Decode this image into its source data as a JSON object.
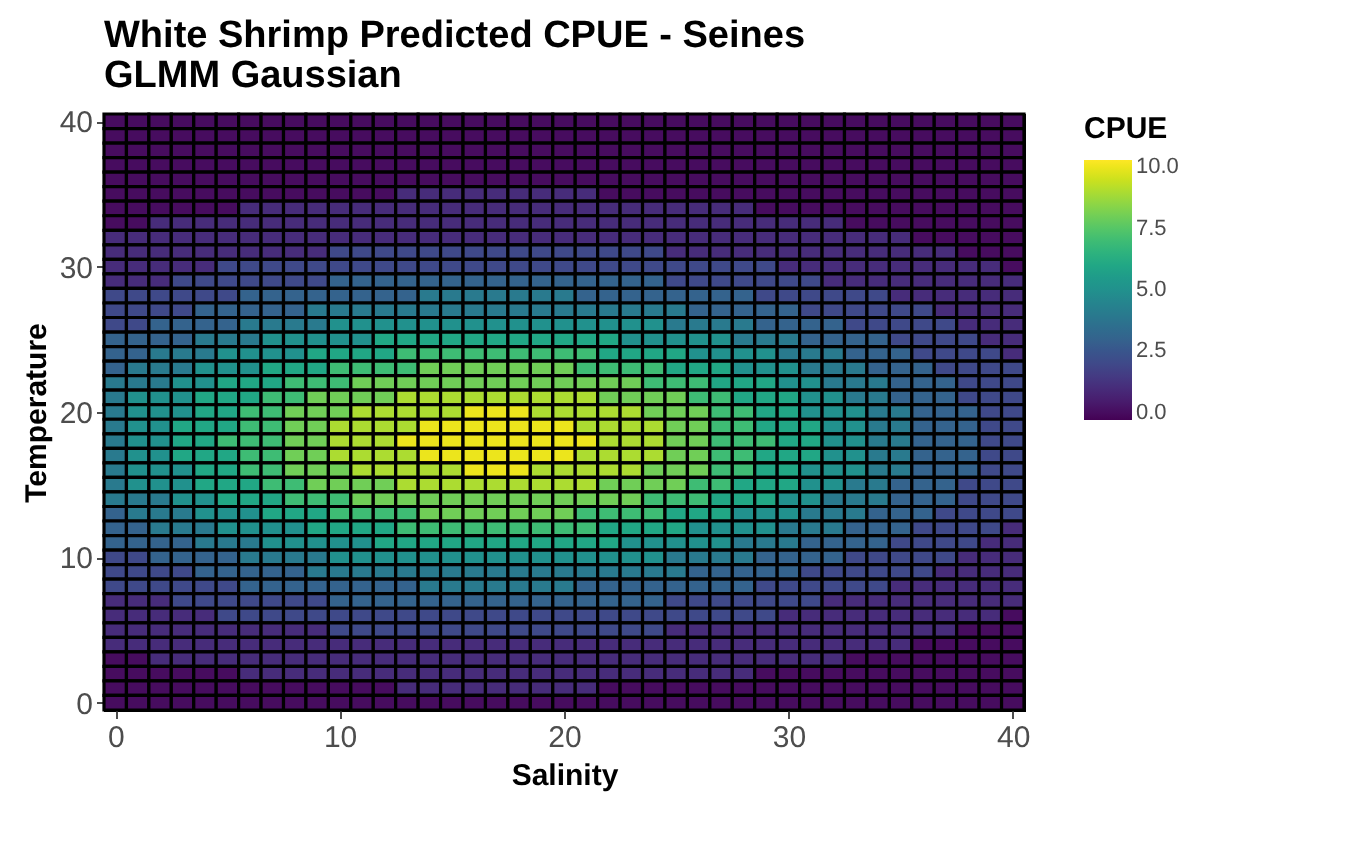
{
  "chart_data": {
    "type": "heatmap",
    "title": "White Shrimp Predicted CPUE - Seines\n GLMM Gaussian",
    "xlabel": "Salinity",
    "ylabel": "Temperature",
    "clabel": "CPUE",
    "x": [
      0,
      1,
      2,
      3,
      4,
      5,
      6,
      7,
      8,
      9,
      10,
      11,
      12,
      13,
      14,
      15,
      16,
      17,
      18,
      19,
      20,
      21,
      22,
      23,
      24,
      25,
      26,
      27,
      28,
      29,
      30,
      31,
      32,
      33,
      34,
      35,
      36,
      37,
      38,
      39,
      40
    ],
    "y": [
      40,
      39,
      38,
      37,
      36,
      35,
      34,
      33,
      32,
      31,
      30,
      29,
      28,
      27,
      26,
      25,
      24,
      23,
      22,
      21,
      20,
      19,
      18,
      17,
      16,
      15,
      14,
      13,
      12,
      11,
      10,
      9,
      8,
      7,
      6,
      5,
      4,
      3,
      2,
      1,
      0
    ],
    "xlim": [
      -0.5,
      40.5
    ],
    "xticks": [
      0,
      10,
      20,
      30,
      40
    ],
    "ylim": [
      -0.5,
      40.5
    ],
    "yticks": [
      0,
      10,
      20,
      30,
      40
    ],
    "clim": [
      -0.3,
      10.3
    ],
    "cticks": [
      {
        "value": 0,
        "label": "0.0"
      },
      {
        "value": 2.5,
        "label": "2.5"
      },
      {
        "value": 5,
        "label": "5.0"
      },
      {
        "value": 7.5,
        "label": "7.5"
      },
      {
        "value": 10,
        "label": "10.0"
      }
    ],
    "cells": [
      [
        0,
        0,
        0,
        0,
        0,
        0,
        0,
        0,
        0,
        0,
        0,
        0,
        0,
        0,
        0,
        0,
        0,
        0,
        0,
        0,
        0,
        0,
        0,
        0,
        0,
        0,
        0,
        0,
        0,
        0,
        0,
        0,
        0,
        0,
        0,
        0,
        0,
        0,
        0,
        0,
        0
      ],
      [
        0,
        0,
        0,
        0,
        0,
        0,
        0,
        0,
        0,
        0,
        0,
        0,
        0,
        0,
        0,
        0,
        0,
        0,
        0,
        0,
        0,
        0,
        0,
        0,
        0,
        0,
        0,
        0,
        0,
        0,
        0,
        0,
        0,
        0,
        0,
        0,
        0,
        0,
        0,
        0,
        0
      ],
      [
        0,
        0,
        0,
        0,
        0,
        0,
        0,
        0,
        0,
        0,
        0,
        0,
        0,
        0,
        0,
        0,
        0,
        0,
        0,
        0,
        0,
        0,
        0,
        0,
        0,
        0,
        0,
        0,
        0,
        0,
        0,
        0,
        0,
        0,
        0,
        0,
        0,
        0,
        0,
        0,
        0
      ],
      [
        0,
        0,
        0,
        0,
        0,
        0,
        0,
        0,
        0,
        0,
        0,
        0,
        0,
        0,
        0,
        0,
        0,
        0,
        0,
        0,
        0,
        0,
        0,
        0,
        0,
        0,
        0,
        0,
        0,
        0,
        0,
        0,
        0,
        0,
        0,
        0,
        0,
        0,
        0,
        0,
        0
      ],
      [
        0,
        0,
        0,
        0,
        0,
        0,
        0,
        0,
        0,
        0,
        0,
        0,
        0,
        0,
        0,
        0,
        0,
        0,
        0,
        0,
        0,
        0,
        0,
        0,
        0,
        0,
        0,
        0,
        0,
        0,
        0,
        0,
        0,
        0,
        0,
        0,
        0,
        0,
        0,
        0,
        0
      ],
      [
        0,
        0,
        0,
        0,
        0,
        0,
        0,
        0,
        0,
        0,
        0,
        0,
        0,
        1,
        1,
        1,
        1,
        1,
        1,
        1,
        1,
        1,
        0,
        0,
        0,
        0,
        0,
        0,
        0,
        0,
        0,
        0,
        0,
        0,
        0,
        0,
        0,
        0,
        0,
        0,
        0
      ],
      [
        0,
        0,
        0,
        0,
        0,
        0,
        1,
        1,
        1,
        1,
        1,
        1,
        1,
        1,
        1,
        1,
        1,
        1,
        1,
        1,
        1,
        1,
        1,
        1,
        1,
        1,
        1,
        1,
        1,
        0,
        0,
        0,
        0,
        0,
        0,
        0,
        0,
        0,
        0,
        0,
        0
      ],
      [
        0,
        0,
        1,
        1,
        1,
        1,
        1,
        1,
        1,
        1,
        1,
        1,
        1,
        1,
        1,
        1,
        1,
        1,
        1,
        1,
        1,
        1,
        1,
        1,
        1,
        1,
        1,
        1,
        1,
        1,
        1,
        1,
        1,
        0,
        0,
        0,
        0,
        0,
        0,
        0,
        0
      ],
      [
        1,
        1,
        1,
        1,
        1,
        1,
        1,
        1,
        1,
        1,
        1,
        1,
        1,
        1,
        1,
        1,
        1,
        1,
        1,
        1,
        1,
        1,
        1,
        1,
        1,
        1,
        1,
        1,
        1,
        1,
        1,
        1,
        1,
        1,
        1,
        1,
        0,
        0,
        0,
        0,
        0
      ],
      [
        1,
        1,
        1,
        1,
        1,
        1,
        1,
        1,
        1,
        1,
        2,
        2,
        2,
        2,
        2,
        2,
        2,
        2,
        2,
        2,
        2,
        2,
        2,
        2,
        2,
        1,
        1,
        1,
        1,
        1,
        1,
        1,
        1,
        1,
        1,
        1,
        1,
        1,
        0,
        0,
        0
      ],
      [
        1,
        1,
        1,
        1,
        1,
        2,
        2,
        2,
        2,
        2,
        2,
        2,
        2,
        2,
        2,
        2,
        2,
        2,
        2,
        2,
        2,
        2,
        2,
        2,
        2,
        2,
        2,
        2,
        2,
        2,
        1,
        1,
        1,
        1,
        1,
        1,
        1,
        1,
        1,
        1,
        0
      ],
      [
        1,
        1,
        1,
        2,
        2,
        2,
        2,
        2,
        2,
        2,
        3,
        3,
        3,
        3,
        3,
        3,
        3,
        3,
        3,
        3,
        3,
        3,
        3,
        3,
        3,
        2,
        2,
        2,
        2,
        2,
        2,
        2,
        1,
        1,
        1,
        1,
        1,
        1,
        1,
        1,
        1
      ],
      [
        2,
        2,
        2,
        2,
        2,
        2,
        3,
        3,
        3,
        3,
        3,
        3,
        3,
        3,
        4,
        4,
        4,
        4,
        4,
        4,
        4,
        3,
        3,
        3,
        3,
        3,
        3,
        3,
        3,
        2,
        2,
        2,
        2,
        2,
        2,
        1,
        1,
        1,
        1,
        1,
        1
      ],
      [
        2,
        2,
        2,
        2,
        3,
        3,
        3,
        3,
        3,
        4,
        4,
        4,
        4,
        4,
        4,
        4,
        4,
        4,
        4,
        4,
        4,
        4,
        4,
        4,
        4,
        4,
        3,
        3,
        3,
        3,
        3,
        2,
        2,
        2,
        2,
        2,
        2,
        1,
        1,
        1,
        1
      ],
      [
        2,
        2,
        3,
        3,
        3,
        3,
        4,
        4,
        4,
        4,
        5,
        5,
        5,
        5,
        5,
        5,
        5,
        5,
        5,
        5,
        5,
        5,
        5,
        5,
        5,
        4,
        4,
        4,
        4,
        3,
        3,
        3,
        3,
        2,
        2,
        2,
        2,
        2,
        1,
        1,
        1
      ],
      [
        3,
        3,
        3,
        3,
        4,
        4,
        4,
        5,
        5,
        5,
        5,
        5,
        6,
        6,
        6,
        6,
        6,
        6,
        6,
        6,
        6,
        6,
        6,
        5,
        5,
        5,
        5,
        5,
        4,
        4,
        4,
        3,
        3,
        3,
        3,
        2,
        2,
        2,
        2,
        1,
        1
      ],
      [
        3,
        3,
        4,
        4,
        4,
        5,
        5,
        5,
        5,
        6,
        6,
        6,
        6,
        7,
        7,
        7,
        7,
        7,
        7,
        7,
        7,
        7,
        6,
        6,
        6,
        6,
        5,
        5,
        5,
        5,
        4,
        4,
        4,
        3,
        3,
        3,
        2,
        2,
        2,
        2,
        1
      ],
      [
        3,
        4,
        4,
        4,
        5,
        5,
        5,
        6,
        6,
        6,
        7,
        7,
        7,
        7,
        8,
        8,
        8,
        8,
        8,
        8,
        8,
        7,
        7,
        7,
        7,
        6,
        6,
        6,
        5,
        5,
        5,
        4,
        4,
        4,
        3,
        3,
        3,
        2,
        2,
        2,
        2
      ],
      [
        4,
        4,
        4,
        5,
        5,
        6,
        6,
        6,
        7,
        7,
        7,
        8,
        8,
        8,
        8,
        8,
        8,
        8,
        8,
        8,
        8,
        8,
        8,
        8,
        7,
        7,
        7,
        6,
        6,
        6,
        5,
        5,
        4,
        4,
        4,
        3,
        3,
        3,
        2,
        2,
        2
      ],
      [
        4,
        5,
        5,
        5,
        6,
        6,
        6,
        7,
        7,
        8,
        8,
        8,
        8,
        9,
        9,
        9,
        9,
        9,
        9,
        9,
        9,
        9,
        8,
        8,
        8,
        8,
        7,
        7,
        6,
        6,
        6,
        5,
        5,
        4,
        4,
        3,
        3,
        3,
        2,
        2,
        2
      ],
      [
        4,
        5,
        5,
        5,
        6,
        6,
        7,
        7,
        8,
        8,
        8,
        9,
        9,
        9,
        9,
        9,
        10,
        10,
        10,
        9,
        9,
        9,
        9,
        9,
        8,
        8,
        8,
        7,
        7,
        6,
        6,
        5,
        5,
        5,
        4,
        4,
        3,
        3,
        3,
        2,
        2
      ],
      [
        4,
        5,
        5,
        6,
        6,
        6,
        7,
        7,
        8,
        8,
        9,
        9,
        9,
        9,
        10,
        10,
        10,
        10,
        10,
        10,
        10,
        9,
        9,
        9,
        9,
        8,
        8,
        7,
        7,
        6,
        6,
        6,
        5,
        5,
        4,
        4,
        3,
        3,
        3,
        2,
        2
      ],
      [
        4,
        5,
        5,
        6,
        6,
        7,
        7,
        7,
        8,
        8,
        9,
        9,
        9,
        10,
        10,
        10,
        10,
        10,
        10,
        10,
        10,
        10,
        9,
        9,
        9,
        8,
        8,
        7,
        7,
        7,
        6,
        6,
        5,
        5,
        4,
        4,
        3,
        3,
        3,
        2,
        2
      ],
      [
        4,
        5,
        5,
        6,
        6,
        6,
        7,
        7,
        8,
        8,
        9,
        9,
        9,
        9,
        10,
        10,
        10,
        10,
        10,
        10,
        10,
        9,
        9,
        9,
        9,
        8,
        8,
        7,
        7,
        6,
        6,
        6,
        5,
        5,
        4,
        4,
        3,
        3,
        3,
        2,
        2
      ],
      [
        4,
        5,
        5,
        5,
        6,
        6,
        7,
        7,
        8,
        8,
        8,
        9,
        9,
        9,
        9,
        9,
        10,
        10,
        10,
        9,
        9,
        9,
        9,
        9,
        8,
        8,
        8,
        7,
        7,
        6,
        6,
        5,
        5,
        5,
        4,
        4,
        3,
        3,
        3,
        2,
        2
      ],
      [
        4,
        5,
        5,
        5,
        6,
        6,
        6,
        7,
        7,
        8,
        8,
        8,
        8,
        9,
        9,
        9,
        9,
        9,
        9,
        9,
        9,
        9,
        8,
        8,
        8,
        8,
        7,
        7,
        6,
        6,
        6,
        5,
        5,
        4,
        4,
        3,
        3,
        3,
        2,
        2,
        2
      ],
      [
        4,
        4,
        4,
        5,
        5,
        6,
        6,
        6,
        7,
        7,
        7,
        8,
        8,
        8,
        8,
        8,
        8,
        8,
        8,
        8,
        8,
        8,
        8,
        8,
        7,
        7,
        7,
        6,
        6,
        6,
        5,
        5,
        4,
        4,
        4,
        3,
        3,
        3,
        2,
        2,
        2
      ],
      [
        3,
        4,
        4,
        4,
        5,
        5,
        5,
        6,
        6,
        6,
        7,
        7,
        7,
        7,
        8,
        8,
        8,
        8,
        8,
        8,
        8,
        7,
        7,
        7,
        7,
        6,
        6,
        6,
        5,
        5,
        5,
        4,
        4,
        4,
        3,
        3,
        3,
        2,
        2,
        2,
        2
      ],
      [
        3,
        3,
        4,
        4,
        4,
        5,
        5,
        5,
        5,
        6,
        6,
        6,
        6,
        7,
        7,
        7,
        7,
        7,
        7,
        7,
        7,
        7,
        6,
        6,
        6,
        6,
        5,
        5,
        5,
        5,
        4,
        4,
        4,
        3,
        3,
        3,
        2,
        2,
        2,
        2,
        1
      ],
      [
        3,
        3,
        3,
        3,
        4,
        4,
        4,
        5,
        5,
        5,
        5,
        5,
        6,
        6,
        6,
        6,
        6,
        6,
        6,
        6,
        6,
        6,
        6,
        5,
        5,
        5,
        5,
        5,
        4,
        4,
        4,
        3,
        3,
        3,
        3,
        2,
        2,
        2,
        2,
        1,
        1
      ],
      [
        2,
        2,
        3,
        3,
        3,
        3,
        4,
        4,
        4,
        4,
        5,
        5,
        5,
        5,
        5,
        5,
        5,
        5,
        5,
        5,
        5,
        5,
        5,
        5,
        5,
        4,
        4,
        4,
        4,
        3,
        3,
        3,
        3,
        2,
        2,
        2,
        2,
        2,
        1,
        1,
        1
      ],
      [
        2,
        2,
        2,
        2,
        3,
        3,
        3,
        3,
        3,
        4,
        4,
        4,
        4,
        4,
        4,
        4,
        4,
        4,
        4,
        4,
        4,
        4,
        4,
        4,
        4,
        4,
        3,
        3,
        3,
        3,
        3,
        2,
        2,
        2,
        2,
        2,
        2,
        1,
        1,
        1,
        1
      ],
      [
        2,
        2,
        2,
        2,
        2,
        2,
        3,
        3,
        3,
        3,
        3,
        3,
        3,
        3,
        4,
        4,
        4,
        4,
        4,
        4,
        4,
        3,
        3,
        3,
        3,
        3,
        3,
        3,
        3,
        2,
        2,
        2,
        2,
        2,
        2,
        1,
        1,
        1,
        1,
        1,
        1
      ],
      [
        1,
        1,
        1,
        2,
        2,
        2,
        2,
        2,
        2,
        2,
        3,
        3,
        3,
        3,
        3,
        3,
        3,
        3,
        3,
        3,
        3,
        3,
        3,
        3,
        3,
        2,
        2,
        2,
        2,
        2,
        2,
        2,
        1,
        1,
        1,
        1,
        1,
        1,
        1,
        1,
        1
      ],
      [
        1,
        1,
        1,
        1,
        1,
        2,
        2,
        2,
        2,
        2,
        2,
        2,
        2,
        2,
        2,
        2,
        2,
        2,
        2,
        2,
        2,
        2,
        2,
        2,
        2,
        2,
        2,
        2,
        2,
        2,
        1,
        1,
        1,
        1,
        1,
        1,
        1,
        1,
        1,
        1,
        0
      ],
      [
        1,
        1,
        1,
        1,
        1,
        1,
        1,
        1,
        1,
        1,
        2,
        2,
        2,
        2,
        2,
        2,
        2,
        2,
        2,
        2,
        2,
        2,
        2,
        2,
        2,
        1,
        1,
        1,
        1,
        1,
        1,
        1,
        1,
        1,
        1,
        1,
        1,
        1,
        0,
        0,
        0
      ],
      [
        1,
        1,
        1,
        1,
        1,
        1,
        1,
        1,
        1,
        1,
        1,
        1,
        1,
        1,
        1,
        1,
        1,
        1,
        1,
        1,
        1,
        1,
        1,
        1,
        1,
        1,
        1,
        1,
        1,
        1,
        1,
        1,
        1,
        1,
        1,
        1,
        0,
        0,
        0,
        0,
        0
      ],
      [
        0,
        0,
        1,
        1,
        1,
        1,
        1,
        1,
        1,
        1,
        1,
        1,
        1,
        1,
        1,
        1,
        1,
        1,
        1,
        1,
        1,
        1,
        1,
        1,
        1,
        1,
        1,
        1,
        1,
        1,
        1,
        1,
        1,
        0,
        0,
        0,
        0,
        0,
        0,
        0,
        0
      ],
      [
        0,
        0,
        0,
        0,
        0,
        0,
        1,
        1,
        1,
        1,
        1,
        1,
        1,
        1,
        1,
        1,
        1,
        1,
        1,
        1,
        1,
        1,
        1,
        1,
        1,
        1,
        1,
        1,
        1,
        0,
        0,
        0,
        0,
        0,
        0,
        0,
        0,
        0,
        0,
        0,
        0
      ],
      [
        0,
        0,
        0,
        0,
        0,
        0,
        0,
        0,
        0,
        0,
        0,
        0,
        0,
        1,
        1,
        1,
        1,
        1,
        1,
        1,
        1,
        1,
        0,
        0,
        0,
        0,
        0,
        0,
        0,
        0,
        0,
        0,
        0,
        0,
        0,
        0,
        0,
        0,
        0,
        0,
        0
      ],
      [
        0,
        0,
        0,
        0,
        0,
        0,
        0,
        0,
        0,
        0,
        0,
        0,
        0,
        0,
        0,
        0,
        0,
        0,
        0,
        0,
        0,
        0,
        0,
        0,
        0,
        0,
        0,
        0,
        0,
        0,
        0,
        0,
        0,
        0,
        0,
        0,
        0,
        0,
        0,
        0,
        0
      ]
    ]
  }
}
